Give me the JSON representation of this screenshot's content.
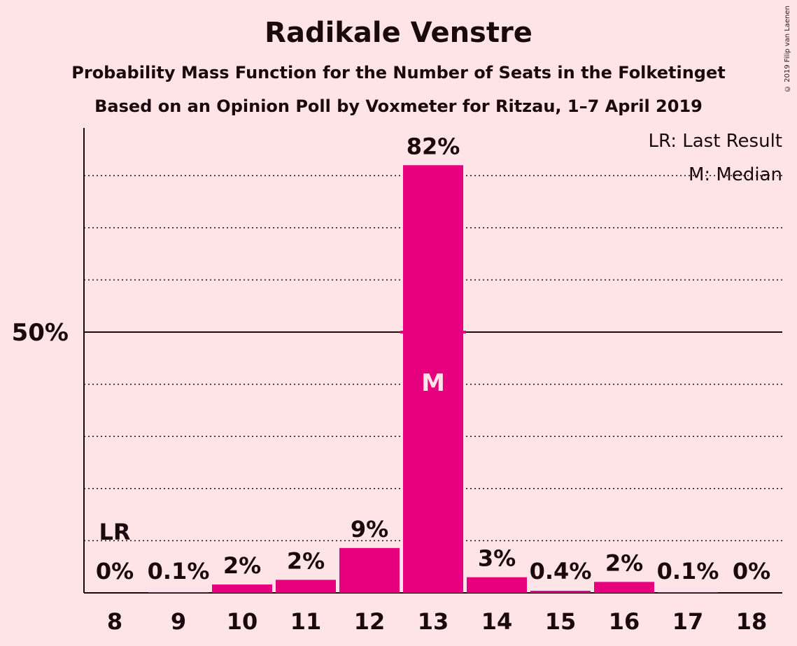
{
  "title": "Radikale Venstre",
  "subtitle_1": "Probability Mass Function for the Number of Seats in the Folketinget",
  "subtitle_2": "Based on an Opinion Poll by Voxmeter for Ritzau, 1–7 April 2019",
  "copyright": "© 2019 Filip van Laenen",
  "colors": {
    "background": "#ffe4e7",
    "bar": "#e6007e",
    "text": "#1a0a0d"
  },
  "legend": {
    "last_result": "LR: Last Result",
    "median": "M: Median"
  },
  "chart_data": {
    "type": "bar",
    "title": "Radikale Venstre",
    "categories": [
      "8",
      "9",
      "10",
      "11",
      "12",
      "13",
      "14",
      "15",
      "16",
      "17",
      "18"
    ],
    "values": [
      0,
      0.1,
      1.6,
      2.5,
      8.6,
      82,
      3.0,
      0.4,
      2.1,
      0.1,
      0
    ],
    "data_labels": [
      "0%",
      "0.1%",
      "2%",
      "2%",
      "9%",
      "82%",
      "3%",
      "0.4%",
      "2%",
      "0.1%",
      "0%"
    ],
    "ylim": [
      0,
      90
    ],
    "y_tick_label": "50%",
    "y_tick_value": 50,
    "gridlines": [
      10,
      20,
      30,
      40,
      60,
      70,
      80
    ],
    "last_result_label": "LR",
    "last_result_category": "8",
    "median_label": "M",
    "median_category": "13",
    "legend_position": "top-right"
  }
}
